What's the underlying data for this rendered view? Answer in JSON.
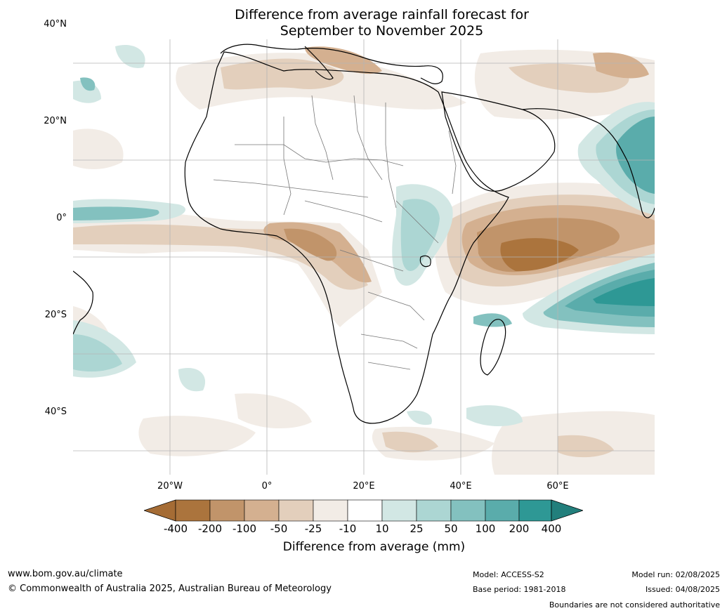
{
  "title": {
    "line1": "Difference from average rainfall forecast for",
    "line2": "September to November 2025"
  },
  "map": {
    "lat_labels": [
      "40°N",
      "20°N",
      "0°",
      "20°S",
      "40°S"
    ],
    "lon_labels": [
      "20°W",
      "0°",
      "20°E",
      "40°E",
      "60°E"
    ]
  },
  "colorbar": {
    "tick_labels": [
      "-400",
      "-200",
      "-100",
      "-50",
      "-25",
      "-10",
      "10",
      "25",
      "50",
      "100",
      "200",
      "400"
    ],
    "colors": [
      "#a56c35",
      "#ab743d",
      "#c1946a",
      "#d4b090",
      "#e3cfbc",
      "#f2ece6",
      "#ffffff",
      "#d2e7e4",
      "#acd6d3",
      "#83c1bf",
      "#5aacab",
      "#2e9895",
      "#227f7c"
    ],
    "label": "Difference from average (mm)"
  },
  "footer": {
    "website": "www.bom.gov.au/climate",
    "copyright": "© Commonwealth of Australia 2025, Australian Bureau of Meteorology",
    "model": "Model: ACCESS-S2",
    "base_period": "Base period: 1981-2018",
    "model_run": "Model run: 02/08/2025",
    "issued": "Issued: 04/08/2025",
    "disclaimer": "Boundaries are not considered authoritative"
  }
}
